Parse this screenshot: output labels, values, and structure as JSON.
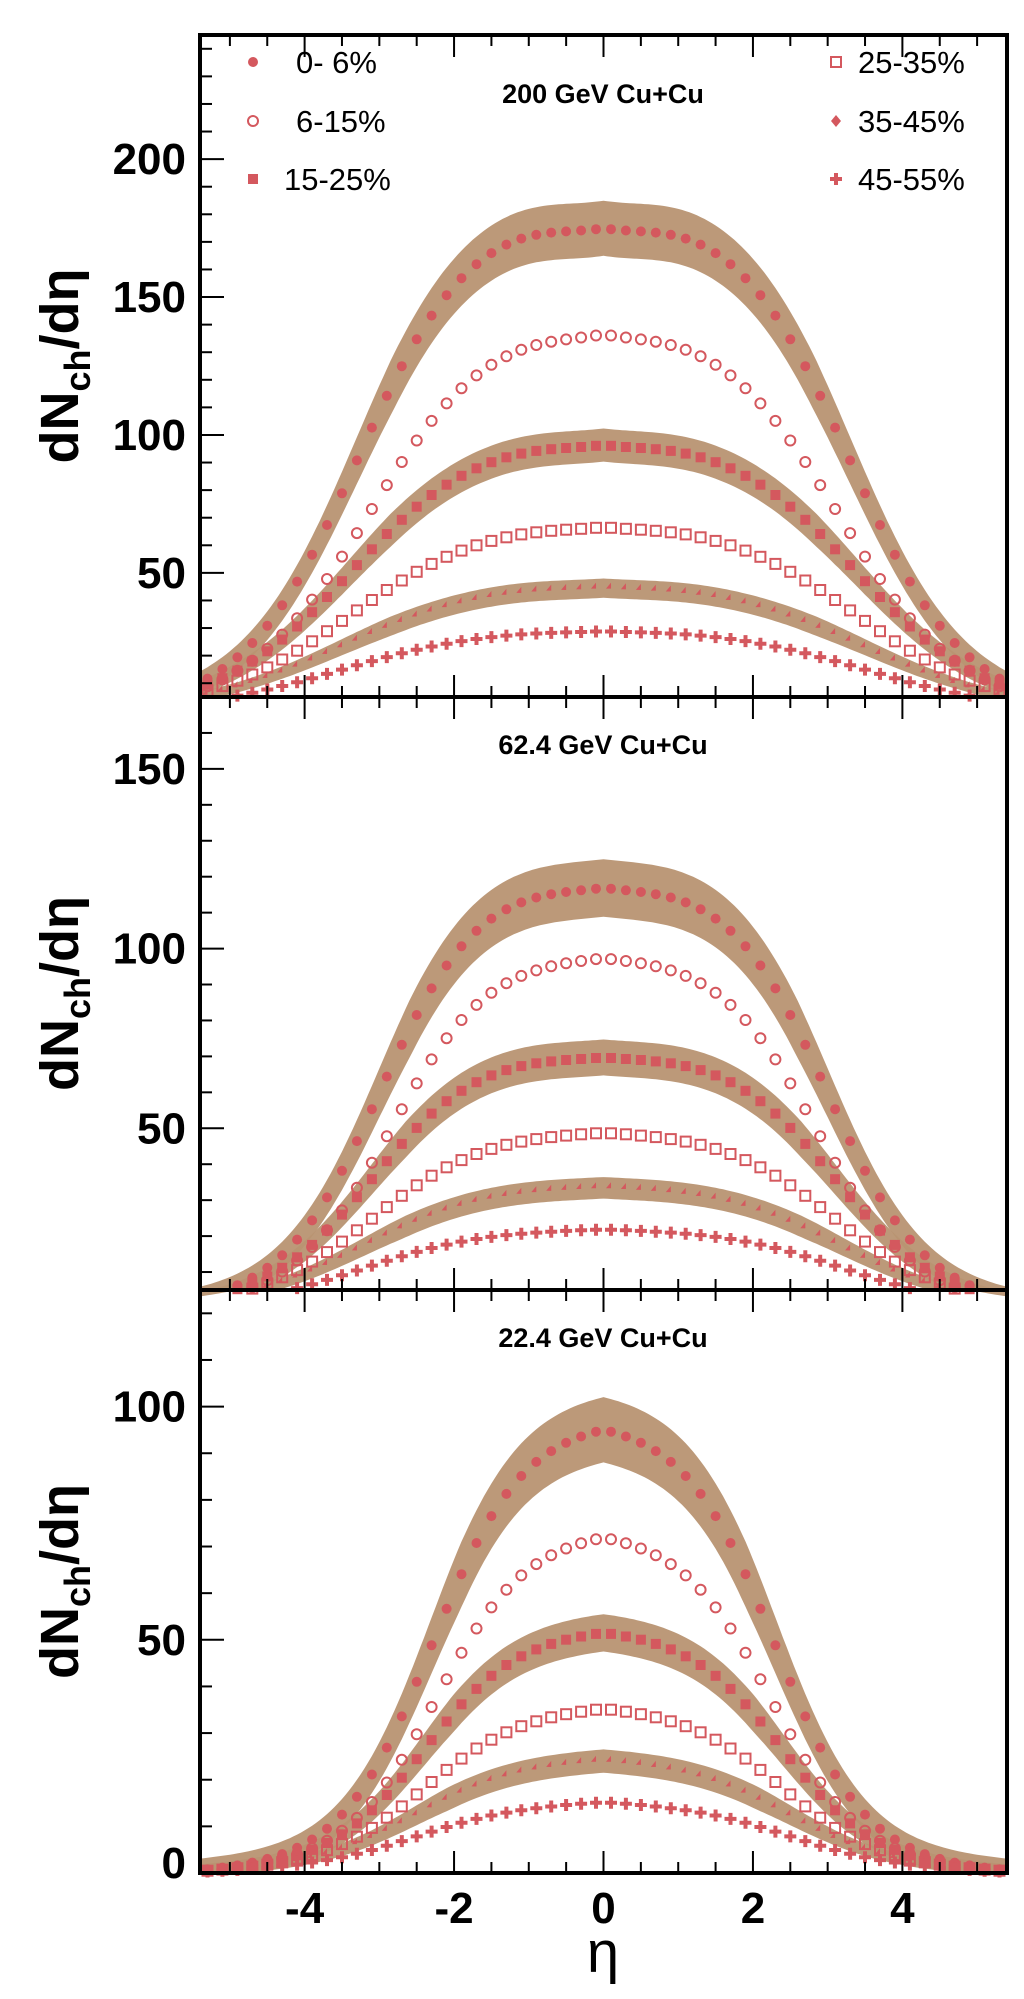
{
  "colors": {
    "band": "#b89372",
    "marker": "#d4585e",
    "axis": "#000000"
  },
  "chart_data": {
    "type": "scatter",
    "xlabel": "η",
    "xlim": [
      -5.4,
      5.4
    ],
    "x_ticks": [
      -4,
      -2,
      0,
      2,
      4
    ],
    "x_tick_labels": [
      "-4",
      "-2",
      "0",
      "2",
      "4"
    ],
    "legend": {
      "placement": "top",
      "entries": [
        {
          "label": "0- 6%",
          "marker": "filled-circle"
        },
        {
          "label": "6-15%",
          "marker": "open-circle"
        },
        {
          "label": "15-25%",
          "marker": "filled-square"
        },
        {
          "label": "25-35%",
          "marker": "open-square"
        },
        {
          "label": "35-45%",
          "marker": "diamond"
        },
        {
          "label": "45-55%",
          "marker": "cross"
        }
      ]
    },
    "panels": [
      {
        "title": "200 GeV Cu+Cu",
        "ylabel_main": "dN",
        "ylabel_sub": "ch",
        "ylabel_tail": "/dη",
        "ylim": [
          5,
          245
        ],
        "y_ticks": [
          50,
          100,
          150,
          200
        ],
        "y_tick_labels": [
          "50",
          "100",
          "150",
          "200"
        ],
        "series": [
          {
            "marker": "filled-circle",
            "band": true,
            "band_halfwidth": 10,
            "plateau": 183,
            "dip": 6,
            "edge": 3.3,
            "width": 0.75,
            "tail": 0.04
          },
          {
            "marker": "open-circle",
            "band": false,
            "plateau": 143,
            "dip": 4,
            "edge": 3.15,
            "width": 0.8,
            "tail": 0.05
          },
          {
            "marker": "filled-square",
            "band": true,
            "band_halfwidth": 6,
            "plateau": 101,
            "dip": 3,
            "edge": 3.4,
            "width": 0.85,
            "tail": 0.05
          },
          {
            "marker": "open-square",
            "band": false,
            "plateau": 70,
            "dip": 2,
            "edge": 3.4,
            "width": 0.9,
            "tail": 0.06
          },
          {
            "marker": "diamond",
            "band": true,
            "band_halfwidth": 3.5,
            "plateau": 47,
            "dip": 1.5,
            "edge": 3.5,
            "width": 0.95,
            "tail": 0.07
          },
          {
            "marker": "cross",
            "band": false,
            "plateau": 30.5,
            "dip": 1,
            "edge": 3.5,
            "width": 0.95,
            "tail": 0.08
          }
        ]
      },
      {
        "title": "62.4 GeV Cu+Cu",
        "ylabel_main": "dN",
        "ylabel_sub": "ch",
        "ylabel_tail": "/dη",
        "ylim": [
          5,
          170
        ],
        "y_ticks": [
          50,
          100,
          150
        ],
        "y_tick_labels": [
          "50",
          "100",
          "150"
        ],
        "series": [
          {
            "marker": "filled-circle",
            "band": true,
            "band_halfwidth": 8,
            "plateau": 120,
            "dip": 2,
            "edge": 3.0,
            "width": 0.65,
            "tail": 0.03
          },
          {
            "marker": "open-circle",
            "band": false,
            "plateau": 99.5,
            "dip": 1,
            "edge": 2.85,
            "width": 0.65,
            "tail": 0.04
          },
          {
            "marker": "filled-square",
            "band": true,
            "band_halfwidth": 5,
            "plateau": 72,
            "dip": 1.5,
            "edge": 3.1,
            "width": 0.7,
            "tail": 0.04
          },
          {
            "marker": "open-square",
            "band": false,
            "plateau": 50,
            "dip": 0.5,
            "edge": 3.1,
            "width": 0.75,
            "tail": 0.05
          },
          {
            "marker": "diamond",
            "band": true,
            "band_halfwidth": 3,
            "plateau": 34.5,
            "dip": 0.5,
            "edge": 3.2,
            "width": 0.8,
            "tail": 0.06
          },
          {
            "marker": "cross",
            "band": false,
            "plateau": 22.5,
            "dip": 0.3,
            "edge": 3.2,
            "width": 0.8,
            "tail": 0.08
          }
        ]
      },
      {
        "title": "22.4 GeV Cu+Cu",
        "ylabel_main": "dN",
        "ylabel_sub": "ch",
        "ylabel_tail": "/dη",
        "ylim": [
          0,
          125
        ],
        "y_ticks": [
          0,
          50,
          100
        ],
        "y_tick_labels": [
          "0",
          "50",
          "100"
        ],
        "series": [
          {
            "marker": "filled-circle",
            "band": true,
            "band_halfwidth": 7,
            "plateau": 97,
            "dip": 0,
            "edge": 2.3,
            "width": 0.6,
            "tail": 0.04
          },
          {
            "marker": "open-circle",
            "band": false,
            "plateau": 73.5,
            "dip": 0,
            "edge": 2.25,
            "width": 0.6,
            "tail": 0.05
          },
          {
            "marker": "filled-square",
            "band": true,
            "band_halfwidth": 4,
            "plateau": 52.5,
            "dip": 0,
            "edge": 2.4,
            "width": 0.62,
            "tail": 0.06
          },
          {
            "marker": "open-square",
            "band": false,
            "plateau": 36,
            "dip": 0,
            "edge": 2.4,
            "width": 0.65,
            "tail": 0.08
          },
          {
            "marker": "diamond",
            "band": true,
            "band_halfwidth": 2.5,
            "plateau": 24.5,
            "dip": 0,
            "edge": 2.5,
            "width": 0.67,
            "tail": 0.12
          },
          {
            "marker": "cross",
            "band": false,
            "plateau": 15.5,
            "dip": 0,
            "edge": 2.5,
            "width": 0.7,
            "tail": 0.15
          }
        ]
      }
    ]
  }
}
